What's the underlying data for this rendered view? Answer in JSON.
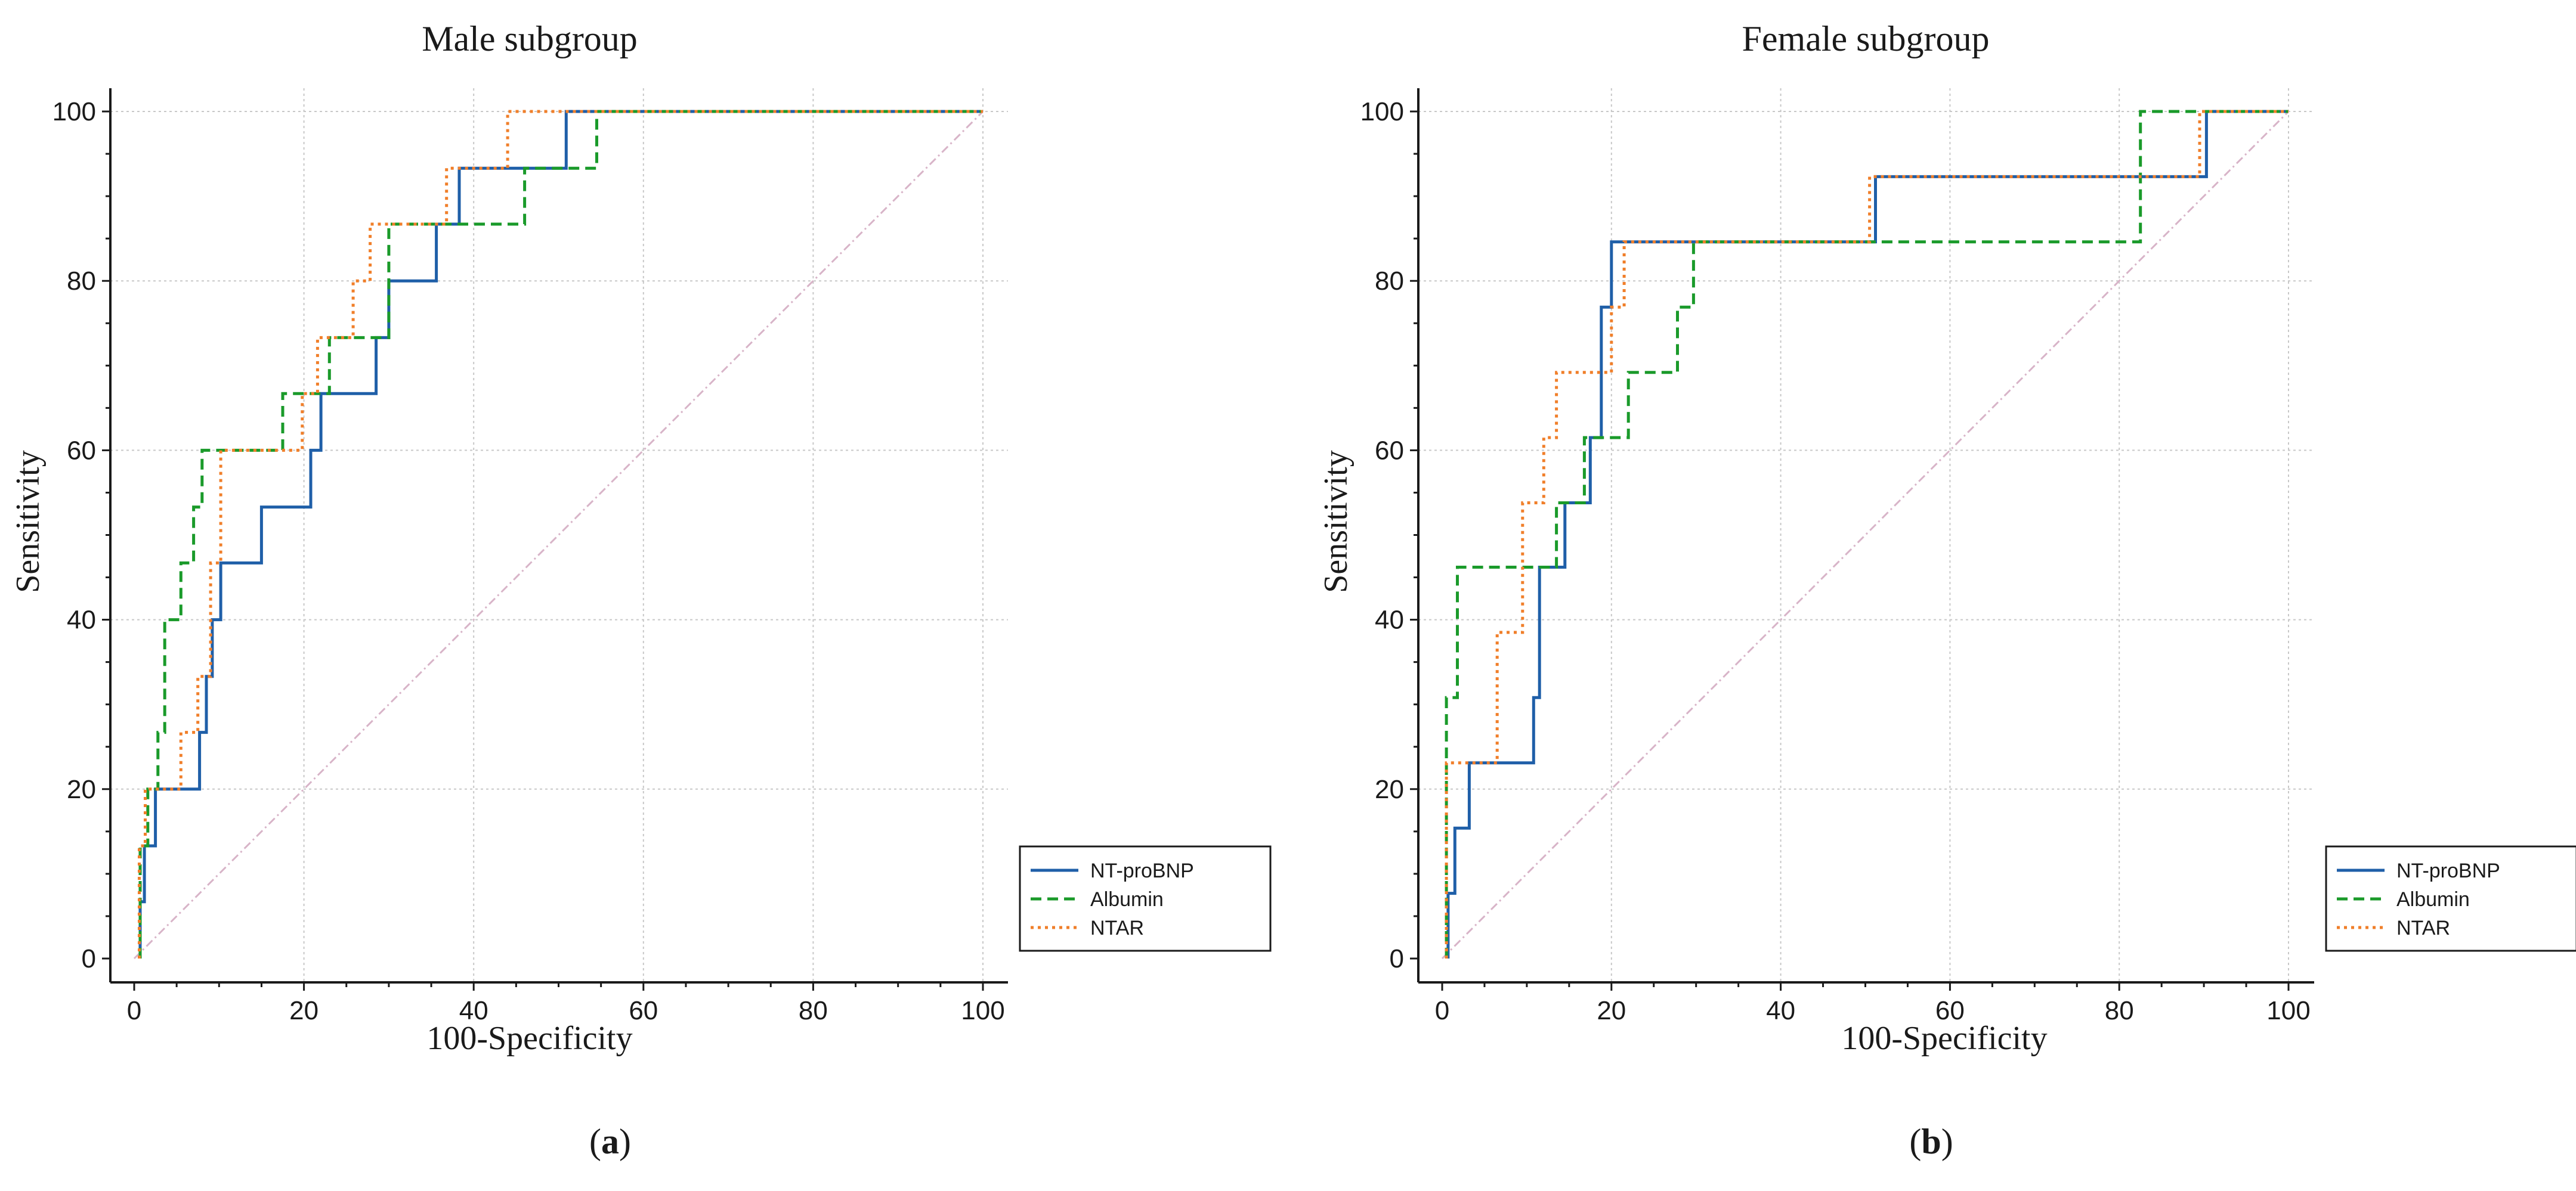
{
  "chart_data": [
    {
      "type": "line",
      "panel_label": "a",
      "title": "Male subgroup",
      "xlabel": "100-Specificity",
      "ylabel": "Sensitivity",
      "xlim": [
        0,
        100
      ],
      "ylim": [
        0,
        100
      ],
      "xticks": [
        0,
        20,
        40,
        60,
        80,
        100
      ],
      "yticks": [
        0,
        20,
        40,
        60,
        80,
        100
      ],
      "grid": true,
      "legend_position": "lower-right",
      "reference_line": {
        "name": "reference",
        "x": [
          0,
          100
        ],
        "y": [
          0,
          100
        ],
        "color": "#d8b4c8"
      },
      "series": [
        {
          "name": "NT-proBNP",
          "color": "#1f5fa8",
          "style": "solid",
          "x": [
            0.7,
            0.7,
            1.2,
            1.2,
            2.5,
            2.5,
            7.7,
            7.7,
            8.5,
            8.5,
            9.2,
            9.2,
            10.2,
            10.2,
            11.0,
            11.0,
            15.0,
            15.0,
            20.8,
            20.8,
            22.0,
            22.0,
            28.5,
            28.5,
            30.0,
            30.0,
            35.6,
            35.6,
            38.3,
            38.3,
            50.9,
            50.9,
            100
          ],
          "y": [
            0,
            6.7,
            6.7,
            13.3,
            13.3,
            20,
            20,
            26.7,
            26.7,
            33.3,
            33.3,
            40,
            40,
            46.7,
            46.7,
            46.7,
            46.7,
            53.3,
            53.3,
            60,
            60,
            66.7,
            66.7,
            73.3,
            73.3,
            80,
            80,
            86.7,
            86.7,
            93.3,
            93.3,
            100,
            100
          ]
        },
        {
          "name": "Albumin",
          "color": "#1a9a2a",
          "style": "dashed",
          "x": [
            0.7,
            0.7,
            1.6,
            1.6,
            2.8,
            2.8,
            3.6,
            3.6,
            5.5,
            5.5,
            7.0,
            7.0,
            8.0,
            8.0,
            17.5,
            17.5,
            23.0,
            23.0,
            30.0,
            30.0,
            36.5,
            36.5,
            46.0,
            46.0,
            54.5,
            54.5,
            100
          ],
          "y": [
            0,
            13.3,
            13.3,
            20,
            20,
            26.7,
            26.7,
            40,
            40,
            46.7,
            46.7,
            53.3,
            53.3,
            60,
            60,
            66.7,
            66.7,
            73.3,
            73.3,
            86.7,
            86.7,
            86.7,
            86.7,
            93.3,
            93.3,
            100,
            100
          ]
        },
        {
          "name": "NTAR",
          "color": "#f07f2a",
          "style": "dotted",
          "x": [
            0.6,
            0.6,
            1.3,
            1.3,
            2.3,
            2.3,
            5.5,
            5.5,
            7.5,
            7.5,
            9.0,
            9.0,
            10.2,
            10.2,
            19.8,
            19.8,
            21.6,
            21.6,
            25.8,
            25.8,
            27.8,
            27.8,
            30.7,
            30.7,
            36.8,
            36.8,
            44.0,
            44.0,
            100
          ],
          "y": [
            0,
            13.3,
            13.3,
            20,
            20,
            20,
            20,
            26.7,
            26.7,
            33.3,
            33.3,
            46.7,
            46.7,
            60,
            60,
            66.7,
            66.7,
            73.3,
            73.3,
            80,
            80,
            86.7,
            86.7,
            86.7,
            86.7,
            93.3,
            93.3,
            100,
            100
          ]
        }
      ]
    },
    {
      "type": "line",
      "panel_label": "b",
      "title": "Female subgroup",
      "xlabel": "100-Specificity",
      "ylabel": "Sensitivity",
      "xlim": [
        0,
        100
      ],
      "ylim": [
        0,
        100
      ],
      "xticks": [
        0,
        20,
        40,
        60,
        80,
        100
      ],
      "yticks": [
        0,
        20,
        40,
        60,
        80,
        100
      ],
      "grid": true,
      "legend_position": "lower-right",
      "reference_line": {
        "name": "reference",
        "x": [
          0,
          100
        ],
        "y": [
          0,
          100
        ],
        "color": "#d8b4c8"
      },
      "series": [
        {
          "name": "NT-proBNP",
          "color": "#1f5fa8",
          "style": "solid",
          "x": [
            0.7,
            0.7,
            1.5,
            1.5,
            3.2,
            3.2,
            4.2,
            4.2,
            10.8,
            10.8,
            11.5,
            11.5,
            14.5,
            14.5,
            17.5,
            17.5,
            18.8,
            18.8,
            20.0,
            20.0,
            22.2,
            22.2,
            51.2,
            51.2,
            90.3,
            90.3,
            100
          ],
          "y": [
            0,
            7.7,
            7.7,
            15.4,
            15.4,
            23.1,
            23.1,
            23.1,
            23.1,
            30.8,
            30.8,
            46.2,
            46.2,
            53.8,
            53.8,
            61.5,
            61.5,
            76.9,
            76.9,
            84.6,
            84.6,
            84.6,
            84.6,
            92.3,
            92.3,
            100,
            100
          ]
        },
        {
          "name": "Albumin",
          "color": "#1a9a2a",
          "style": "dashed",
          "x": [
            0.5,
            0.5,
            1.8,
            1.8,
            10.8,
            10.8,
            13.5,
            13.5,
            16.8,
            16.8,
            22.0,
            22.0,
            27.8,
            27.8,
            29.7,
            29.7,
            31.5,
            31.5,
            82.5,
            82.5,
            100
          ],
          "y": [
            0,
            30.8,
            30.8,
            46.2,
            46.2,
            46.2,
            46.2,
            53.8,
            53.8,
            61.5,
            61.5,
            69.2,
            69.2,
            76.9,
            76.9,
            84.6,
            84.6,
            84.6,
            84.6,
            100,
            100
          ]
        },
        {
          "name": "NTAR",
          "color": "#f07f2a",
          "style": "dotted",
          "x": [
            0.5,
            0.5,
            1.5,
            1.5,
            6.5,
            6.5,
            9.5,
            9.5,
            12.0,
            12.0,
            13.5,
            13.5,
            20.0,
            20.0,
            21.5,
            21.5,
            50.5,
            50.5,
            89.5,
            89.5,
            100
          ],
          "y": [
            0,
            23.1,
            23.1,
            23.1,
            23.1,
            38.5,
            38.5,
            53.8,
            53.8,
            61.5,
            61.5,
            69.2,
            69.2,
            76.9,
            76.9,
            84.6,
            84.6,
            92.3,
            92.3,
            100,
            100
          ]
        }
      ]
    }
  ]
}
